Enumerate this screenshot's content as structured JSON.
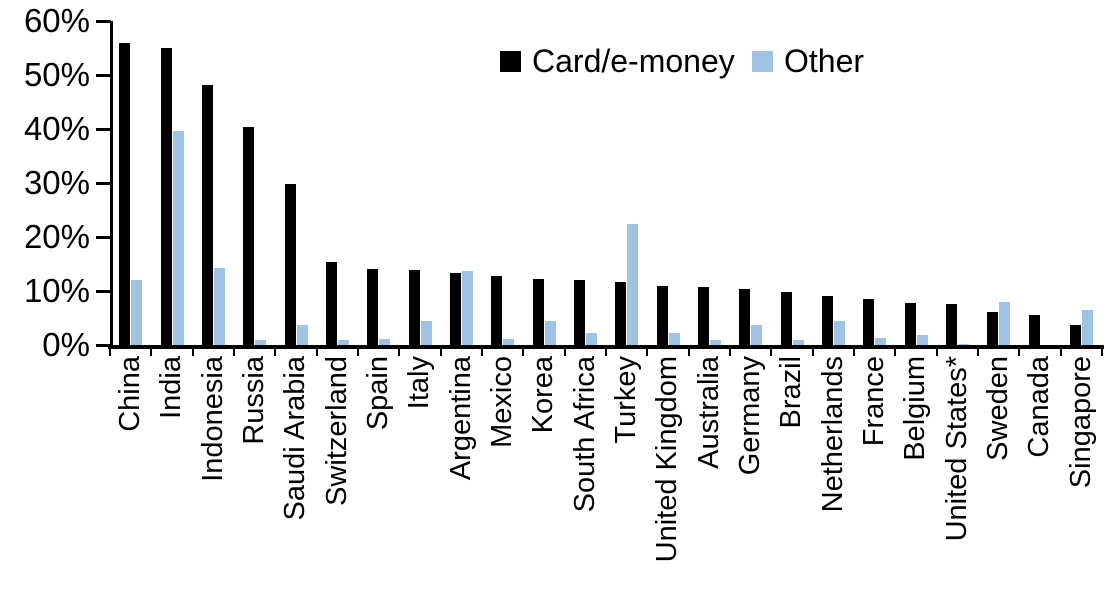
{
  "chart_data": {
    "type": "bar",
    "title": "",
    "xlabel": "",
    "ylabel": "",
    "grid": false,
    "legend_position": "top-center",
    "categories": [
      "China",
      "India",
      "Indonesia",
      "Russia",
      "Saudi Arabia",
      "Switzerland",
      "Spain",
      "Italy",
      "Argentina",
      "Mexico",
      "Korea",
      "South Africa",
      "Turkey",
      "United Kingdom",
      "Australia",
      "Germany",
      "Brazil",
      "Netherlands",
      "France",
      "Belgium",
      "United States*",
      "Sweden",
      "Canada",
      "Singapore"
    ],
    "series": [
      {
        "name": "Card/e-money",
        "color": "#000000",
        "values": [
          56,
          55,
          48.2,
          40.4,
          29.8,
          15.4,
          14,
          13.9,
          13.4,
          12.7,
          12.3,
          12,
          11.6,
          10.9,
          10.7,
          10.4,
          9.8,
          9,
          8.5,
          7.8,
          7.6,
          6.2,
          5.6,
          3.7
        ]
      },
      {
        "name": "Other",
        "color": "#9dc3e6",
        "values": [
          12,
          39.7,
          14.2,
          1,
          3.7,
          0.9,
          1.1,
          4.5,
          13.7,
          1.2,
          4.4,
          2.2,
          22.5,
          2.3,
          0.9,
          3.7,
          1,
          4.5,
          1.3,
          1.9,
          0.2,
          7.9,
          0,
          6.5
        ]
      }
    ],
    "yaxis": {
      "ylim": [
        0,
        60
      ],
      "tick_labels_top_to_bottom": [
        "60%",
        "50%",
        "40%",
        "30%",
        "20%",
        "10%",
        "0%"
      ]
    }
  }
}
